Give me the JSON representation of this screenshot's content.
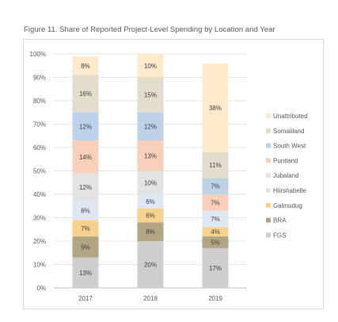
{
  "chart_data": {
    "type": "bar",
    "stacked": true,
    "percent": true,
    "title": "Figure 11. Share of Reported Project-Level Spending by Location and Year",
    "categories": [
      "2017",
      "2018",
      "2019"
    ],
    "ylim": [
      0,
      100
    ],
    "yticks": [
      "0%",
      "10%",
      "20%",
      "30%",
      "40%",
      "50%",
      "60%",
      "70%",
      "80%",
      "90%",
      "100%"
    ],
    "grid": true,
    "legend": "right",
    "series": [
      {
        "name": "FGS",
        "color": "#d0cdcd",
        "values": [
          13,
          20,
          17
        ],
        "labels": [
          "13%",
          "20%",
          "17%"
        ]
      },
      {
        "name": "BRA",
        "color": "#b1a582",
        "values": [
          9,
          8,
          5
        ],
        "labels": [
          "9%",
          "8%",
          "5%"
        ]
      },
      {
        "name": "Galmudug",
        "color": "#f6d28e",
        "values": [
          7,
          6,
          4
        ],
        "labels": [
          "7%",
          "6%",
          "4%"
        ]
      },
      {
        "name": "Hiirshabelle",
        "color": "#dfe8f2",
        "values": [
          8,
          6,
          7
        ],
        "labels": [
          "8%",
          "6%",
          "7%"
        ]
      },
      {
        "name": "Jubaland",
        "color": "#e4e2e2",
        "values": [
          12,
          10,
          0
        ],
        "labels": [
          "12%",
          "10%",
          ""
        ]
      },
      {
        "name": "Puntland",
        "color": "#f8cfb8",
        "values": [
          14,
          13,
          7
        ],
        "labels": [
          "14%",
          "13%",
          "7%"
        ]
      },
      {
        "name": "South West",
        "color": "#bdd1e8",
        "values": [
          12,
          12,
          7
        ],
        "labels": [
          "12%",
          "12%",
          "7%"
        ]
      },
      {
        "name": "Somaliland",
        "color": "#e2ddcc",
        "values": [
          16,
          15,
          11
        ],
        "labels": [
          "16%",
          "15%",
          "11%"
        ]
      },
      {
        "name": "Unattributed",
        "color": "#fdeacb",
        "values": [
          8,
          10,
          38
        ],
        "labels": [
          "8%",
          "10%",
          "38%"
        ]
      }
    ]
  }
}
